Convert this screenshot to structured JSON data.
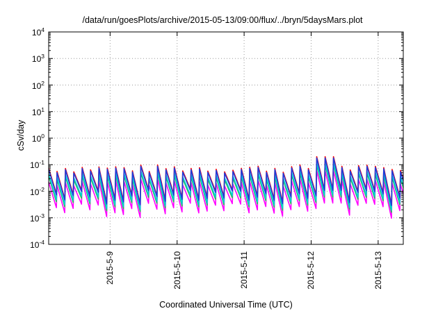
{
  "chart_data": {
    "type": "line",
    "title": "/data/run/goesPlots/archive/2015-05-13/09:00/flux/../bryn/5daysMars.plot",
    "xlabel": "Coordinated Universal Time (UTC)",
    "ylabel": "cSv/day",
    "yscale": "log",
    "ylim": [
      0.0001,
      10000
    ],
    "yticks": [
      {
        "value": 0.0001,
        "base": "10",
        "exp": "-4"
      },
      {
        "value": 0.001,
        "base": "10",
        "exp": "-3"
      },
      {
        "value": 0.01,
        "base": "10",
        "exp": "-2"
      },
      {
        "value": 0.1,
        "base": "10",
        "exp": "-1"
      },
      {
        "value": 1,
        "base": "10",
        "exp": "0"
      },
      {
        "value": 10,
        "base": "10",
        "exp": "1"
      },
      {
        "value": 100,
        "base": "10",
        "exp": "2"
      },
      {
        "value": 1000,
        "base": "10",
        "exp": "3"
      },
      {
        "value": 10000,
        "base": "10",
        "exp": "4"
      }
    ],
    "xlim": [
      "2015-05-08 02:00",
      "2015-05-13 09:00"
    ],
    "xticks": [
      "2015-5-9",
      "2015-5-10",
      "2015-5-11",
      "2015-5-12",
      "2015-5-13"
    ],
    "grid": true,
    "pattern": {
      "cycle_hours": 3,
      "peak_min": 0.05,
      "peak_max": 0.1,
      "trough_min": 0.003,
      "trough_max": 0.012,
      "event_peak": 0.2,
      "event_date": "2015-05-12 06:00"
    },
    "series": [
      {
        "color": "#ff0000",
        "scale": 1.0,
        "values": []
      },
      {
        "color": "#1e3cdc",
        "scale": 0.9,
        "values": []
      },
      {
        "color": "#00d2d2",
        "scale": 0.6,
        "values": []
      },
      {
        "color": "#2db45a",
        "scale": 0.5,
        "values": []
      },
      {
        "color": "#ff00ff",
        "scale": 0.3,
        "values": []
      }
    ]
  }
}
